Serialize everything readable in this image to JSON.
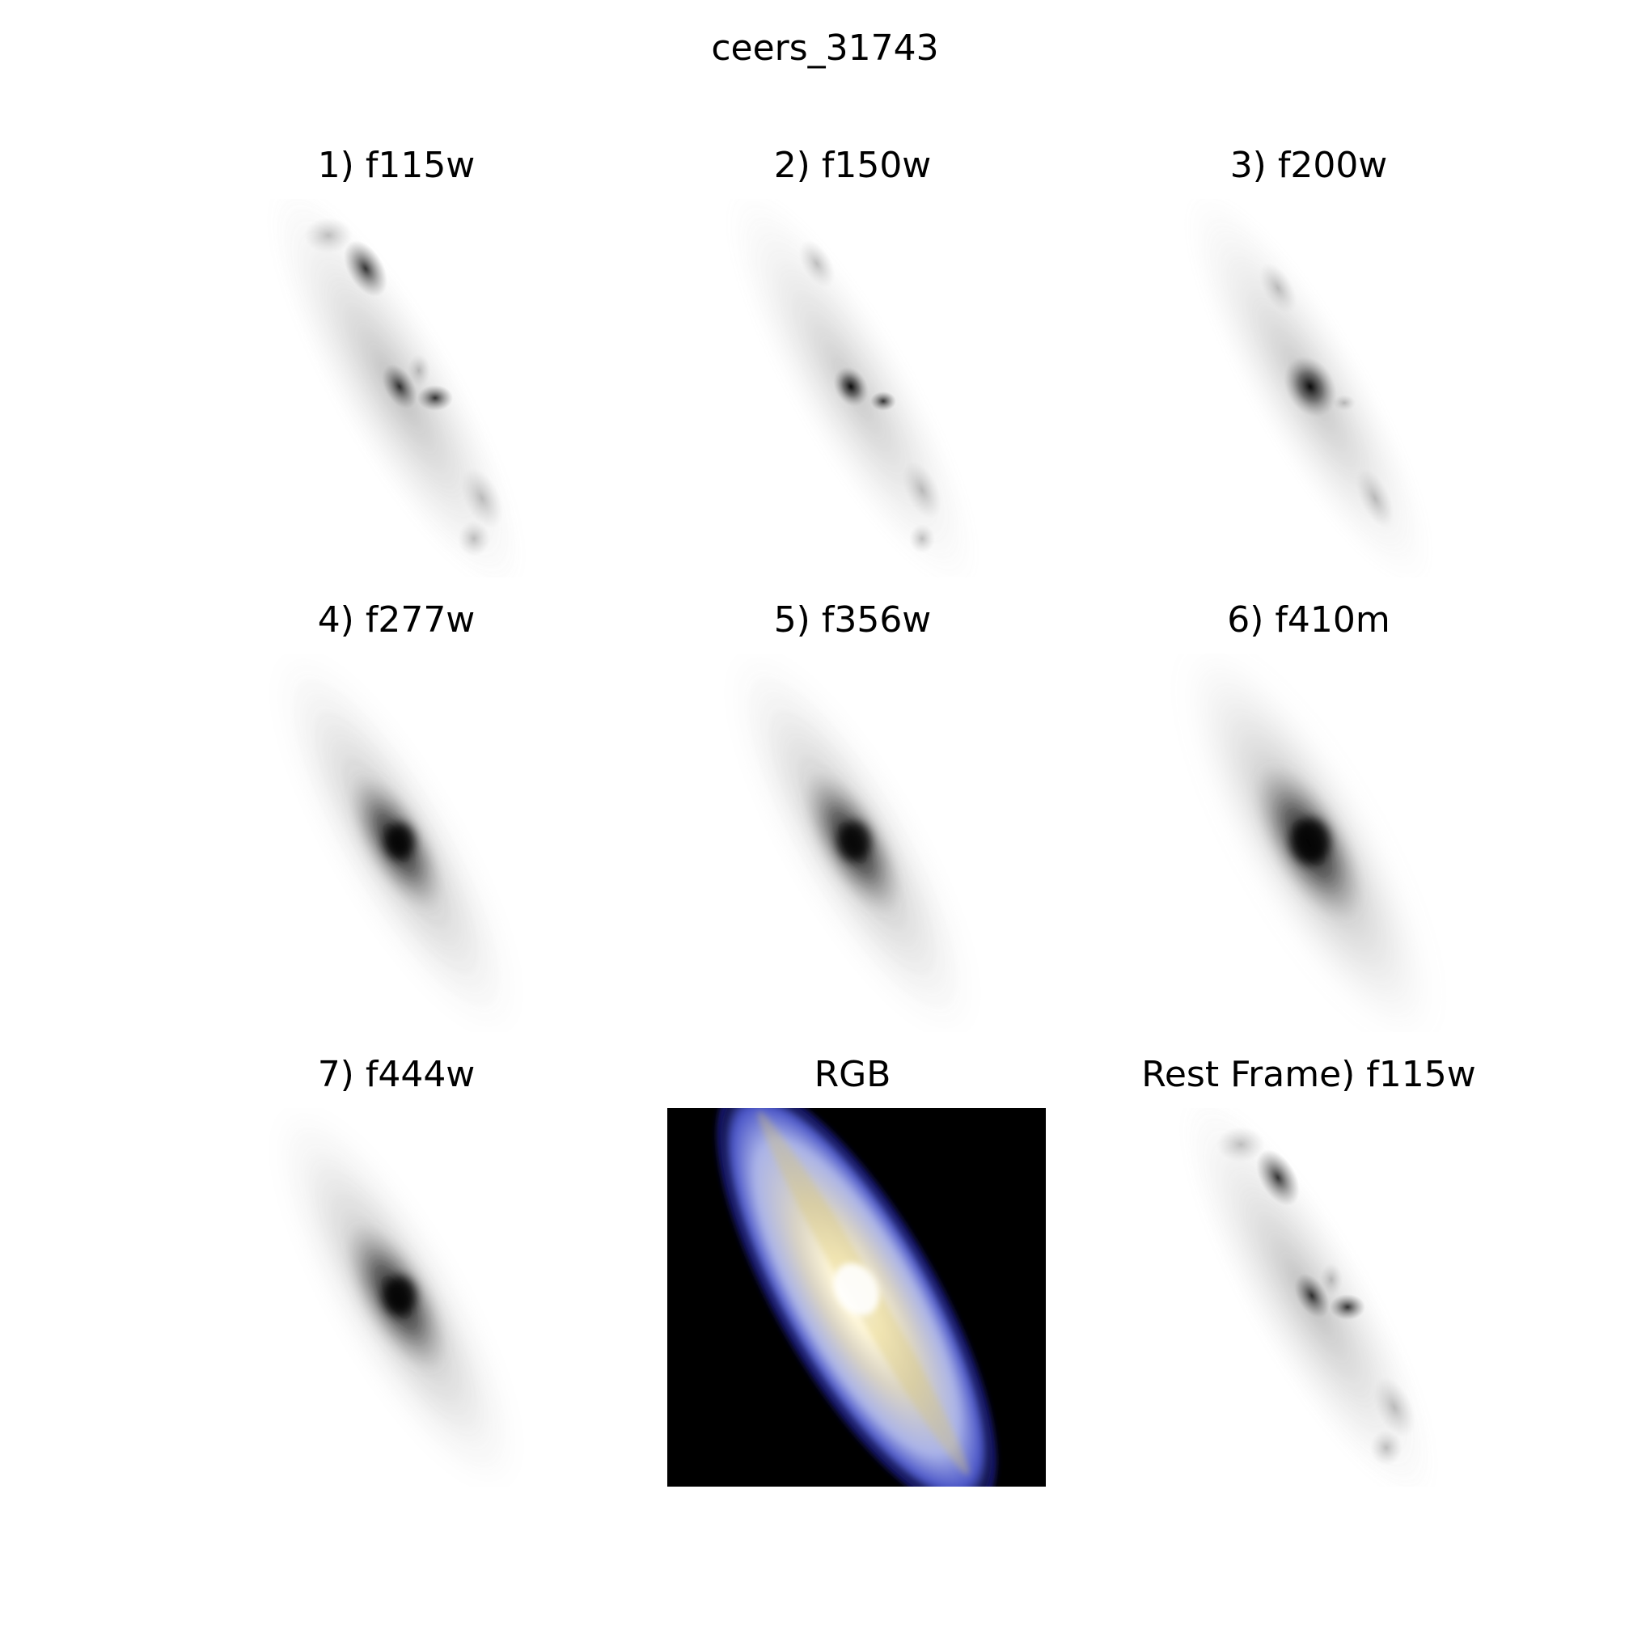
{
  "figure": {
    "title": "ceers_31743"
  },
  "panels": [
    {
      "title": "1) f115w",
      "kind": "grayscale",
      "band": "f115w"
    },
    {
      "title": "2) f150w",
      "kind": "grayscale",
      "band": "f150w"
    },
    {
      "title": "3) f200w",
      "kind": "grayscale",
      "band": "f200w"
    },
    {
      "title": "4) f277w",
      "kind": "grayscale",
      "band": "f277w"
    },
    {
      "title": "5) f356w",
      "kind": "grayscale",
      "band": "f356w"
    },
    {
      "title": "6) f410m",
      "kind": "grayscale",
      "band": "f410m"
    },
    {
      "title": "7) f444w",
      "kind": "grayscale",
      "band": "f444w"
    },
    {
      "title": "RGB",
      "kind": "color"
    },
    {
      "title": "Rest Frame) f115w",
      "kind": "grayscale",
      "band": "f115w"
    }
  ],
  "colors": {
    "background": "#ffffff",
    "rgb_panel_background": "#000000",
    "rgb_core": "#fffbe0",
    "rgb_halo": "#aab3e8",
    "rgb_yellow_lane": "#d8c46c"
  }
}
